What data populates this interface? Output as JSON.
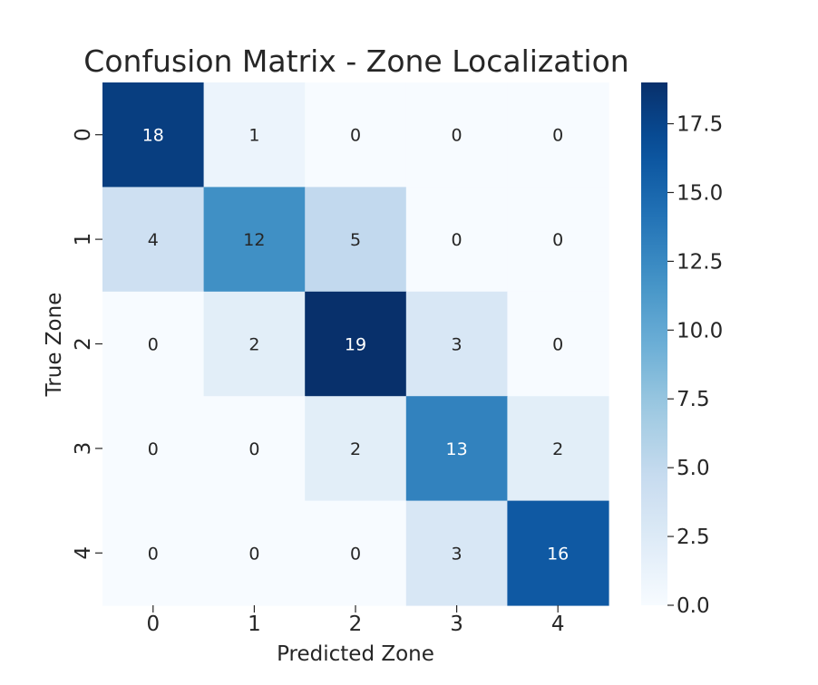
{
  "chart_data": {
    "type": "heatmap",
    "title": "Confusion Matrix - Zone Localization",
    "xlabel": "Predicted Zone",
    "ylabel": "True Zone",
    "x_categories": [
      "0",
      "1",
      "2",
      "3",
      "4"
    ],
    "y_categories": [
      "0",
      "1",
      "2",
      "3",
      "4"
    ],
    "values": [
      [
        18,
        1,
        0,
        0,
        0
      ],
      [
        4,
        12,
        5,
        0,
        0
      ],
      [
        0,
        2,
        19,
        3,
        0
      ],
      [
        0,
        0,
        2,
        13,
        2
      ],
      [
        0,
        0,
        0,
        3,
        16
      ]
    ],
    "colorbar": {
      "min": 0,
      "max": 19,
      "ticks": [
        0.0,
        2.5,
        5.0,
        7.5,
        10.0,
        12.5,
        15.0,
        17.5
      ],
      "tick_labels": [
        "0.0",
        "2.5",
        "5.0",
        "7.5",
        "10.0",
        "12.5",
        "15.0",
        "17.5"
      ]
    },
    "colormap": "Blues",
    "annotations": true
  }
}
